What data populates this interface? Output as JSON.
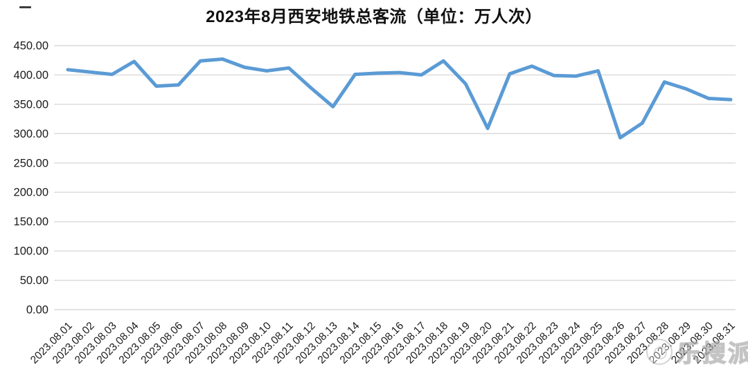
{
  "page": {
    "title": "2023年8月西安地铁总客流（单位：万人次）"
  },
  "watermark": {
    "text": "乐搜派"
  },
  "chart_data": {
    "type": "line",
    "title": "2023年8月西安地铁总客流（单位：万人次）",
    "unit": "万人次",
    "categories": [
      "2023.08.01",
      "2023.08.02",
      "2023.08.03",
      "2023.08.04",
      "2023.08.05",
      "2023.08.06",
      "2023.08.07",
      "2023.08.08",
      "2023.08.09",
      "2023.08.10",
      "2023.08.11",
      "2023.08.12",
      "2023.08.13",
      "2023.08.14",
      "2023.08.15",
      "2023.08.16",
      "2023.08.17",
      "2023.08.18",
      "2023.08.19",
      "2023.08.20",
      "2023.08.21",
      "2023.08.22",
      "2023.08.23",
      "2023.08.24",
      "2023.08.25",
      "2023.08.26",
      "2023.08.27",
      "2023.08.28",
      "2023.08.29",
      "2023.08.30",
      "2023.08.31"
    ],
    "values": [
      409,
      405,
      401,
      423,
      381,
      383,
      424,
      427,
      413,
      407,
      412,
      378,
      346,
      401,
      403,
      404,
      400,
      424,
      385,
      309,
      402,
      415,
      399,
      398,
      407,
      293,
      318,
      388,
      376,
      360,
      358
    ],
    "ylim": [
      0,
      450
    ],
    "ytick_step": 50,
    "ytick_labels": [
      "0.00",
      "50.00",
      "100.00",
      "150.00",
      "200.00",
      "250.00",
      "300.00",
      "350.00",
      "400.00",
      "450.00"
    ],
    "grid": true,
    "legend": "none",
    "xlabel": "",
    "ylabel": "",
    "line_color": "#5B9BD5",
    "gridline_color": "#D9D9D9",
    "text_color": "#1a1a1a"
  }
}
